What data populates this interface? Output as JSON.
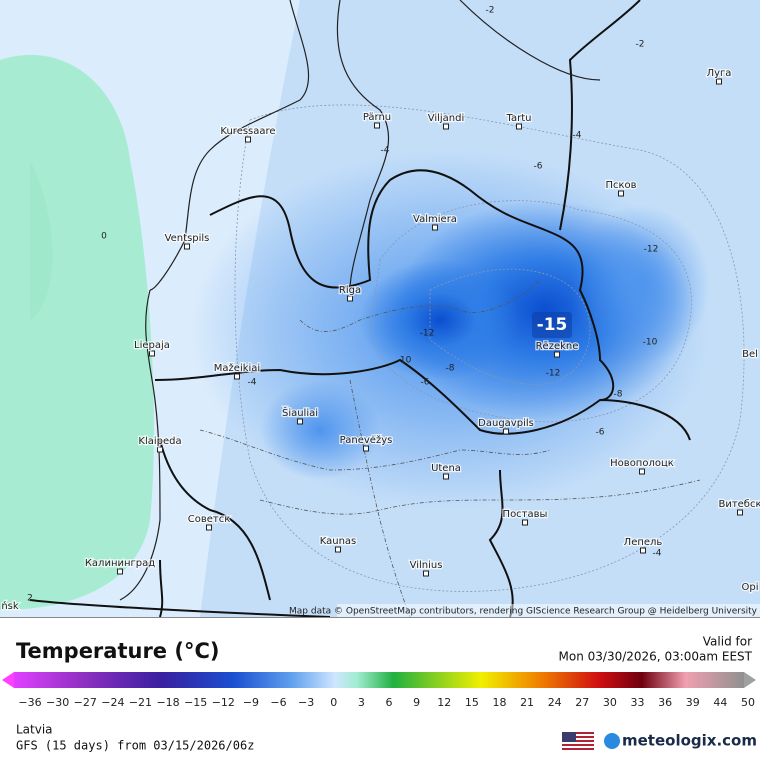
{
  "map": {
    "cities": [
      "Kuressaare",
      "Pärnu",
      "Viljandi",
      "Tartu",
      "Луга",
      "Псков",
      "Ventspils",
      "Valmiera",
      "Riga",
      "Liepaja",
      "Rēzekne",
      "Mažeikiai",
      "Šiauliai",
      "Panevėžys",
      "Daugavpils",
      "Klaipeda",
      "Utena",
      "Новополоцк",
      "Советск",
      "Поставы",
      "Витебск",
      "Kaunas",
      "Лепель",
      "Калининград",
      "Vilnius",
      "Bel",
      "Opi",
      "ńsk"
    ],
    "contour_labels": [
      "-2",
      "-2",
      "-4",
      "-4",
      "-6",
      "0",
      "-12",
      "-12",
      "-10",
      "-10",
      "-8",
      "-6",
      "-4",
      "-12",
      "-8",
      "-6",
      "2",
      "-4"
    ],
    "max_label": "-15",
    "attribution": "Map data © OpenStreetMap contributors, rendering GIScience Research Group @ Heidelberg University"
  },
  "legend": {
    "title": "Temperature (°C)",
    "valid_for": "Valid for",
    "valid_time": "Mon 03/30/2026, 03:00am EEST",
    "ticks": [
      "−36",
      "−30",
      "−27",
      "−24",
      "−21",
      "−18",
      "−15",
      "−12",
      "−9",
      "−6",
      "−3",
      "0",
      "3",
      "6",
      "9",
      "12",
      "15",
      "18",
      "21",
      "24",
      "27",
      "30",
      "33",
      "36",
      "39",
      "44",
      "50"
    ]
  },
  "footer": {
    "region": "Latvia",
    "model_run": "GFS (15 days) from 03/15/2026/06z",
    "logo": "meteologix.com"
  }
}
